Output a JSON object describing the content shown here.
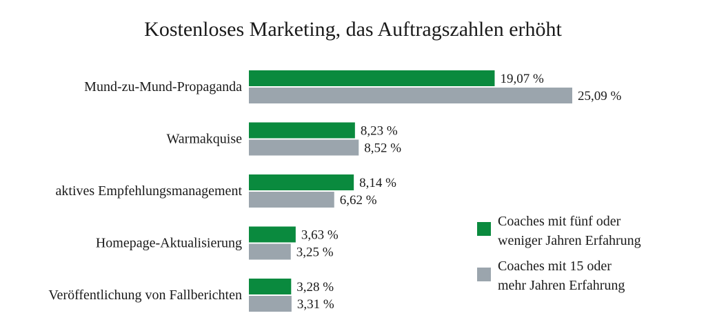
{
  "chart_data": {
    "type": "bar",
    "orientation": "horizontal",
    "title": "Kostenloses Marketing, das Auftragszahlen erhöht",
    "categories": [
      "Mund-zu-Mund-Propaganda",
      "Warmakquise",
      "aktives Empfehlungsmanagement",
      "Homepage-Aktualisierung",
      "Veröffentlichung von Fallberichten"
    ],
    "series": [
      {
        "name": "Coaches mit fünf oder weniger Jahren Erfahrung",
        "name_lines": [
          "Coaches mit fünf oder",
          "weniger Jahren Erfahrung"
        ],
        "color": "#0a8a3e",
        "values": [
          19.07,
          8.23,
          8.14,
          3.63,
          3.28
        ],
        "labels": [
          "19,07 %",
          "8,23 %",
          "8,14 %",
          "3,63 %",
          "3,28 %"
        ]
      },
      {
        "name": "Coaches mit 15 oder mehr Jahren Erfahrung",
        "name_lines": [
          "Coaches mit 15 oder",
          "mehr Jahren Erfahrung"
        ],
        "color": "#9ba5ad",
        "values": [
          25.09,
          8.52,
          6.62,
          3.25,
          3.31
        ],
        "labels": [
          "25,09 %",
          "8,52 %",
          "6,62 %",
          "3,25 %",
          "3,31 %"
        ]
      }
    ],
    "xlim": [
      0,
      25.09
    ],
    "grid": false,
    "legend_position": "right"
  }
}
